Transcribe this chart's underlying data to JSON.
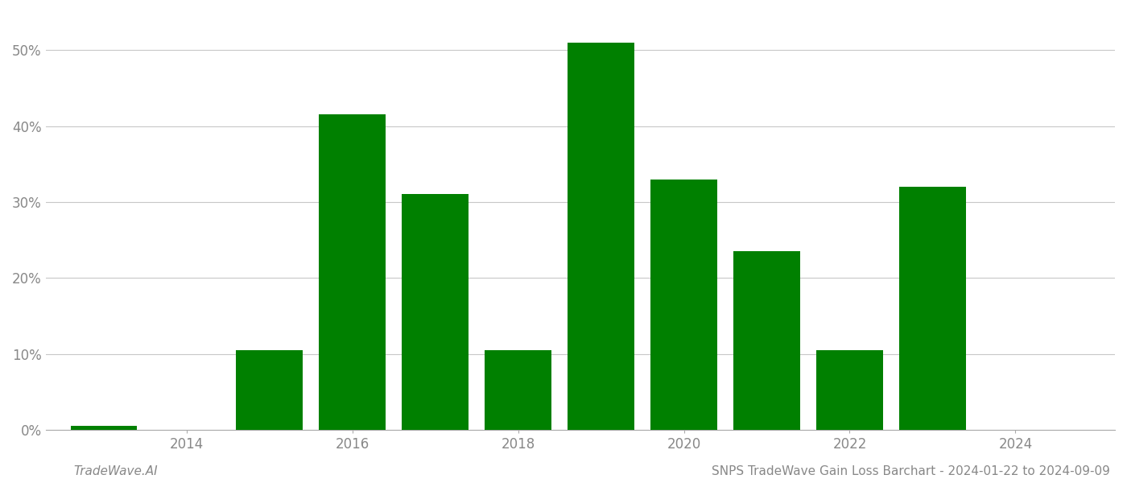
{
  "years": [
    2013,
    2015,
    2016,
    2017,
    2018,
    2019,
    2020,
    2021,
    2022,
    2023
  ],
  "values": [
    0.5,
    10.5,
    41.5,
    31.0,
    10.5,
    51.0,
    33.0,
    23.5,
    10.5,
    32.0
  ],
  "bar_color": "#008000",
  "background_color": "#ffffff",
  "grid_color": "#c8c8c8",
  "title": "SNPS TradeWave Gain Loss Barchart - 2024-01-22 to 2024-09-09",
  "watermark": "TradeWave.AI",
  "ytick_labels": [
    "0%",
    "10%",
    "20%",
    "30%",
    "40%",
    "50%"
  ],
  "ytick_values": [
    0,
    10,
    20,
    30,
    40,
    50
  ],
  "xtick_values": [
    2014,
    2016,
    2018,
    2020,
    2022,
    2024
  ],
  "ylim": [
    0,
    55
  ],
  "xlim": [
    2012.3,
    2025.2
  ],
  "title_fontsize": 11,
  "watermark_fontsize": 11,
  "tick_fontsize": 12,
  "bar_width": 0.8
}
